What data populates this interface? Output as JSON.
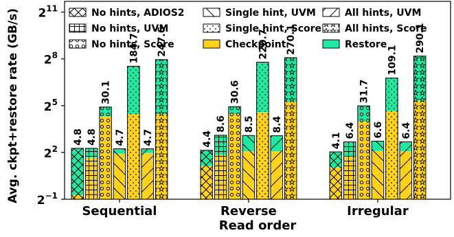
{
  "chart_data": {
    "type": "bar",
    "scale": "log2",
    "xlabel": "Read order",
    "ylabel": "Avg. ckpt+restore rate (GB/s)",
    "yticks": [
      {
        "value": 0.5,
        "label_base": "2",
        "label_exp": "−1"
      },
      {
        "value": 4,
        "label_base": "2",
        "label_exp": "2"
      },
      {
        "value": 32,
        "label_base": "2",
        "label_exp": "5"
      },
      {
        "value": 256,
        "label_base": "2",
        "label_exp": "8"
      },
      {
        "value": 2048,
        "label_base": "2",
        "label_exp": "11"
      }
    ],
    "ylim": [
      0.5,
      5000
    ],
    "categories": [
      "Sequential",
      "Reverse",
      "Irregular"
    ],
    "stack_parts": [
      {
        "name": "Checkpoint",
        "color": "#ffd21a"
      },
      {
        "name": "Restore",
        "color": "#1de9a0"
      }
    ],
    "series": [
      {
        "name": "No hints, ADIOS2",
        "pattern": "cross",
        "checkpoint": [
          0.6,
          2.2,
          2.1
        ],
        "total": [
          4.8,
          4.4,
          4.1
        ],
        "labels": [
          "4.8",
          "4.4",
          "4.1"
        ]
      },
      {
        "name": "No hints, UVM",
        "pattern": "grid",
        "checkpoint": [
          3.2,
          3.6,
          3.4
        ],
        "total": [
          4.8,
          8.6,
          6.4
        ],
        "labels": [
          "4.8",
          "8.6",
          "6.4"
        ]
      },
      {
        "name": "No hints, Score",
        "pattern": "circles",
        "checkpoint": [
          20.0,
          22.0,
          16.0
        ],
        "total": [
          30.1,
          30.6,
          31.7
        ],
        "labels": [
          "30.1",
          "30.6",
          "31.7"
        ]
      },
      {
        "name": "Single hint, UVM",
        "pattern": "backslash",
        "checkpoint": [
          3.8,
          4.2,
          4.3
        ],
        "total": [
          4.7,
          8.5,
          6.6
        ],
        "labels": [
          "4.7",
          "8.5",
          "6.6"
        ]
      },
      {
        "name": "Single hint, Score",
        "pattern": "dots",
        "checkpoint": [
          22.0,
          24.0,
          25.0
        ],
        "total": [
          184.7,
          220.7,
          109.1
        ],
        "labels": [
          "184.7",
          "220.7",
          "109.1"
        ]
      },
      {
        "name": "All hints, UVM",
        "pattern": "slash",
        "checkpoint": [
          3.9,
          4.2,
          4.2
        ],
        "total": [
          4.7,
          8.4,
          6.4
        ],
        "labels": [
          "4.7",
          "8.4",
          "6.4"
        ]
      },
      {
        "name": "All hints, Score",
        "pattern": "stars",
        "checkpoint": [
          22.0,
          38.0,
          40.0
        ],
        "total": [
          247.6,
          270.1,
          290.1
        ],
        "labels": [
          "247.6",
          "270.1",
          "290.1"
        ]
      }
    ],
    "legend": {
      "placement": "top",
      "entries": [
        {
          "label": "No hints, ADIOS2",
          "fill": "#ffffff",
          "pattern": "cross"
        },
        {
          "label": "Single hint, UVM",
          "fill": "#ffffff",
          "pattern": "backslash"
        },
        {
          "label": "All hints, UVM",
          "fill": "#ffffff",
          "pattern": "slash"
        },
        {
          "label": "No hints, UVM",
          "fill": "#ffffff",
          "pattern": "grid"
        },
        {
          "label": "Single hint, Score",
          "fill": "#ffffff",
          "pattern": "dots"
        },
        {
          "label": "All hints, Score",
          "fill": "#ffffff",
          "pattern": "stars"
        },
        {
          "label": "No hints, Score",
          "fill": "#ffffff",
          "pattern": "circles"
        },
        {
          "label": "Checkpoint",
          "fill": "#ffd21a",
          "pattern": "none"
        },
        {
          "label": "Restore",
          "fill": "#1de9a0",
          "pattern": "none"
        }
      ]
    }
  }
}
